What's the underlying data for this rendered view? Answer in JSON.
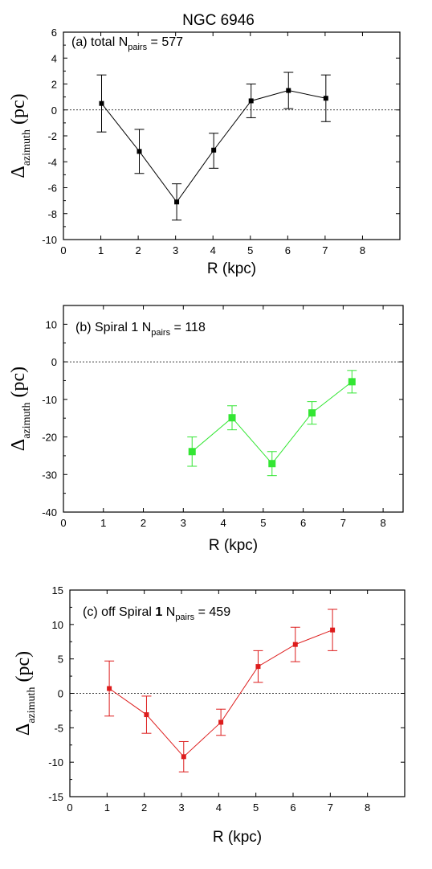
{
  "figure_title": "NGC 6946",
  "chart_data": [
    {
      "type": "scatter",
      "panel": "a",
      "annotation": {
        "prefix": "(a) total N",
        "subscript": "pairs",
        "suffix": " = 577"
      },
      "xlabel": "R (kpc)",
      "ylabel": {
        "main": "Δ",
        "subscript": "azimuth",
        "suffix": " (pc)"
      },
      "xlim": [
        0,
        9
      ],
      "ylim": [
        -10,
        6
      ],
      "xticks": [
        0,
        1,
        2,
        3,
        4,
        5,
        6,
        7,
        8
      ],
      "yticks": [
        -10,
        -8,
        -6,
        -4,
        -2,
        0,
        2,
        4,
        6
      ],
      "reference_line": 0,
      "grid": false,
      "series": [
        {
          "color": "#000000",
          "marker_size": 6,
          "points": [
            {
              "x": 1.02,
              "y": 0.5,
              "err_low": 2.2,
              "err_high": 2.2
            },
            {
              "x": 2.03,
              "y": -3.2,
              "err_low": 1.7,
              "err_high": 1.7
            },
            {
              "x": 3.03,
              "y": -7.1,
              "err_low": 1.4,
              "err_high": 1.4
            },
            {
              "x": 4.02,
              "y": -3.1,
              "err_low": 1.4,
              "err_high": 1.3
            },
            {
              "x": 5.02,
              "y": 0.7,
              "err_low": 1.3,
              "err_high": 1.3
            },
            {
              "x": 6.02,
              "y": 1.5,
              "err_low": 1.4,
              "err_high": 1.4
            },
            {
              "x": 7.02,
              "y": 0.9,
              "err_low": 1.8,
              "err_high": 1.8
            }
          ]
        }
      ]
    },
    {
      "type": "scatter",
      "panel": "b",
      "annotation": {
        "prefix": "(b) Spiral 1 N",
        "subscript": "pairs",
        "suffix": " = 118"
      },
      "xlabel": "R (kpc)",
      "ylabel": {
        "main": "Δ",
        "subscript": "azimuth",
        "suffix": " (pc)"
      },
      "xlim": [
        0,
        8.5
      ],
      "ylim": [
        -40,
        15
      ],
      "xticks": [
        0,
        1,
        2,
        3,
        4,
        5,
        6,
        7,
        8
      ],
      "yticks": [
        -40,
        -30,
        -20,
        -10,
        0,
        10
      ],
      "reference_line": 0,
      "grid": false,
      "series": [
        {
          "color": "#33e633",
          "marker_size": 9,
          "points": [
            {
              "x": 3.22,
              "y": -23.9,
              "err_low": 3.9,
              "err_high": 3.9
            },
            {
              "x": 4.22,
              "y": -14.9,
              "err_low": 3.2,
              "err_high": 3.2
            },
            {
              "x": 5.22,
              "y": -27.1,
              "err_low": 3.2,
              "err_high": 3.2
            },
            {
              "x": 6.22,
              "y": -13.6,
              "err_low": 3.0,
              "err_high": 3.0
            },
            {
              "x": 7.22,
              "y": -5.3,
              "err_low": 3.0,
              "err_high": 3.0
            }
          ]
        }
      ]
    },
    {
      "type": "scatter",
      "panel": "c",
      "annotation": {
        "prefix": "(c) off Spiral ",
        "bold": "1",
        "mid": " N",
        "subscript": "pairs",
        "suffix": " = 459"
      },
      "xlabel": "R (kpc)",
      "ylabel": {
        "main": "Δ",
        "subscript": "azimuth",
        "suffix": " (pc)"
      },
      "xlim": [
        0,
        9
      ],
      "ylim": [
        -15,
        15
      ],
      "xticks": [
        0,
        1,
        2,
        3,
        4,
        5,
        6,
        7,
        8
      ],
      "yticks": [
        -15,
        -10,
        -5,
        0,
        5,
        10,
        15
      ],
      "reference_line": 0,
      "grid": false,
      "series": [
        {
          "color": "#dd1c1c",
          "marker_size": 6,
          "points": [
            {
              "x": 1.06,
              "y": 0.7,
              "err_low": 4.0,
              "err_high": 4.0
            },
            {
              "x": 2.06,
              "y": -3.1,
              "err_low": 2.7,
              "err_high": 2.7
            },
            {
              "x": 3.06,
              "y": -9.2,
              "err_low": 2.2,
              "err_high": 2.2
            },
            {
              "x": 4.06,
              "y": -4.2,
              "err_low": 1.9,
              "err_high": 1.9
            },
            {
              "x": 5.06,
              "y": 3.9,
              "err_low": 2.3,
              "err_high": 2.3
            },
            {
              "x": 6.06,
              "y": 7.1,
              "err_low": 2.5,
              "err_high": 2.5
            },
            {
              "x": 7.06,
              "y": 9.2,
              "err_low": 3.0,
              "err_high": 3.0
            }
          ]
        }
      ]
    }
  ]
}
